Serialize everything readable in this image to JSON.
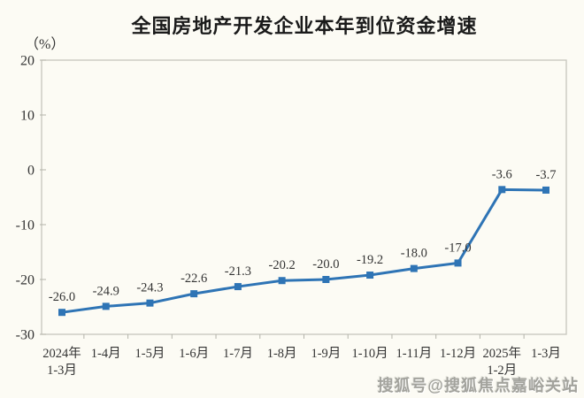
{
  "header": {
    "title": "全国房地产开发企业本年到位资金增速",
    "unit_label": "（%）"
  },
  "watermark": {
    "text": "搜狐号@搜狐焦点嘉峪关站"
  },
  "chart_data": {
    "type": "line",
    "title": "全国房地产开发企业本年到位资金增速",
    "ylabel": "（%）",
    "xlabel": "",
    "categories": [
      [
        "2024年",
        "1-3月"
      ],
      [
        "1-4月"
      ],
      [
        "1-5月"
      ],
      [
        "1-6月"
      ],
      [
        "1-7月"
      ],
      [
        "1-8月"
      ],
      [
        "1-9月"
      ],
      [
        "1-10月"
      ],
      [
        "1-11月"
      ],
      [
        "1-12月"
      ],
      [
        "2025年",
        "1-2月"
      ],
      [
        "1-3月"
      ]
    ],
    "values": [
      -26.0,
      -24.9,
      -24.3,
      -22.6,
      -21.3,
      -20.2,
      -20.0,
      -19.2,
      -18.0,
      -17.0,
      -3.6,
      -3.7
    ],
    "point_labels": [
      "-26.0",
      "-24.9",
      "-24.3",
      "-22.6",
      "-21.3",
      "-20.2",
      "-20.0",
      "-19.2",
      "-18.0",
      "-17.0",
      "-3.6",
      "-3.7"
    ],
    "ylim": [
      -30,
      20
    ],
    "yticks": [
      20,
      10,
      0,
      -10,
      -20,
      -30
    ],
    "grid": false,
    "legend_position": "none",
    "line_color": "#2E74B5",
    "marker": "square",
    "text_color": "#333333",
    "axis_color": "#C6C6BD",
    "background": "#FCFBF4"
  }
}
